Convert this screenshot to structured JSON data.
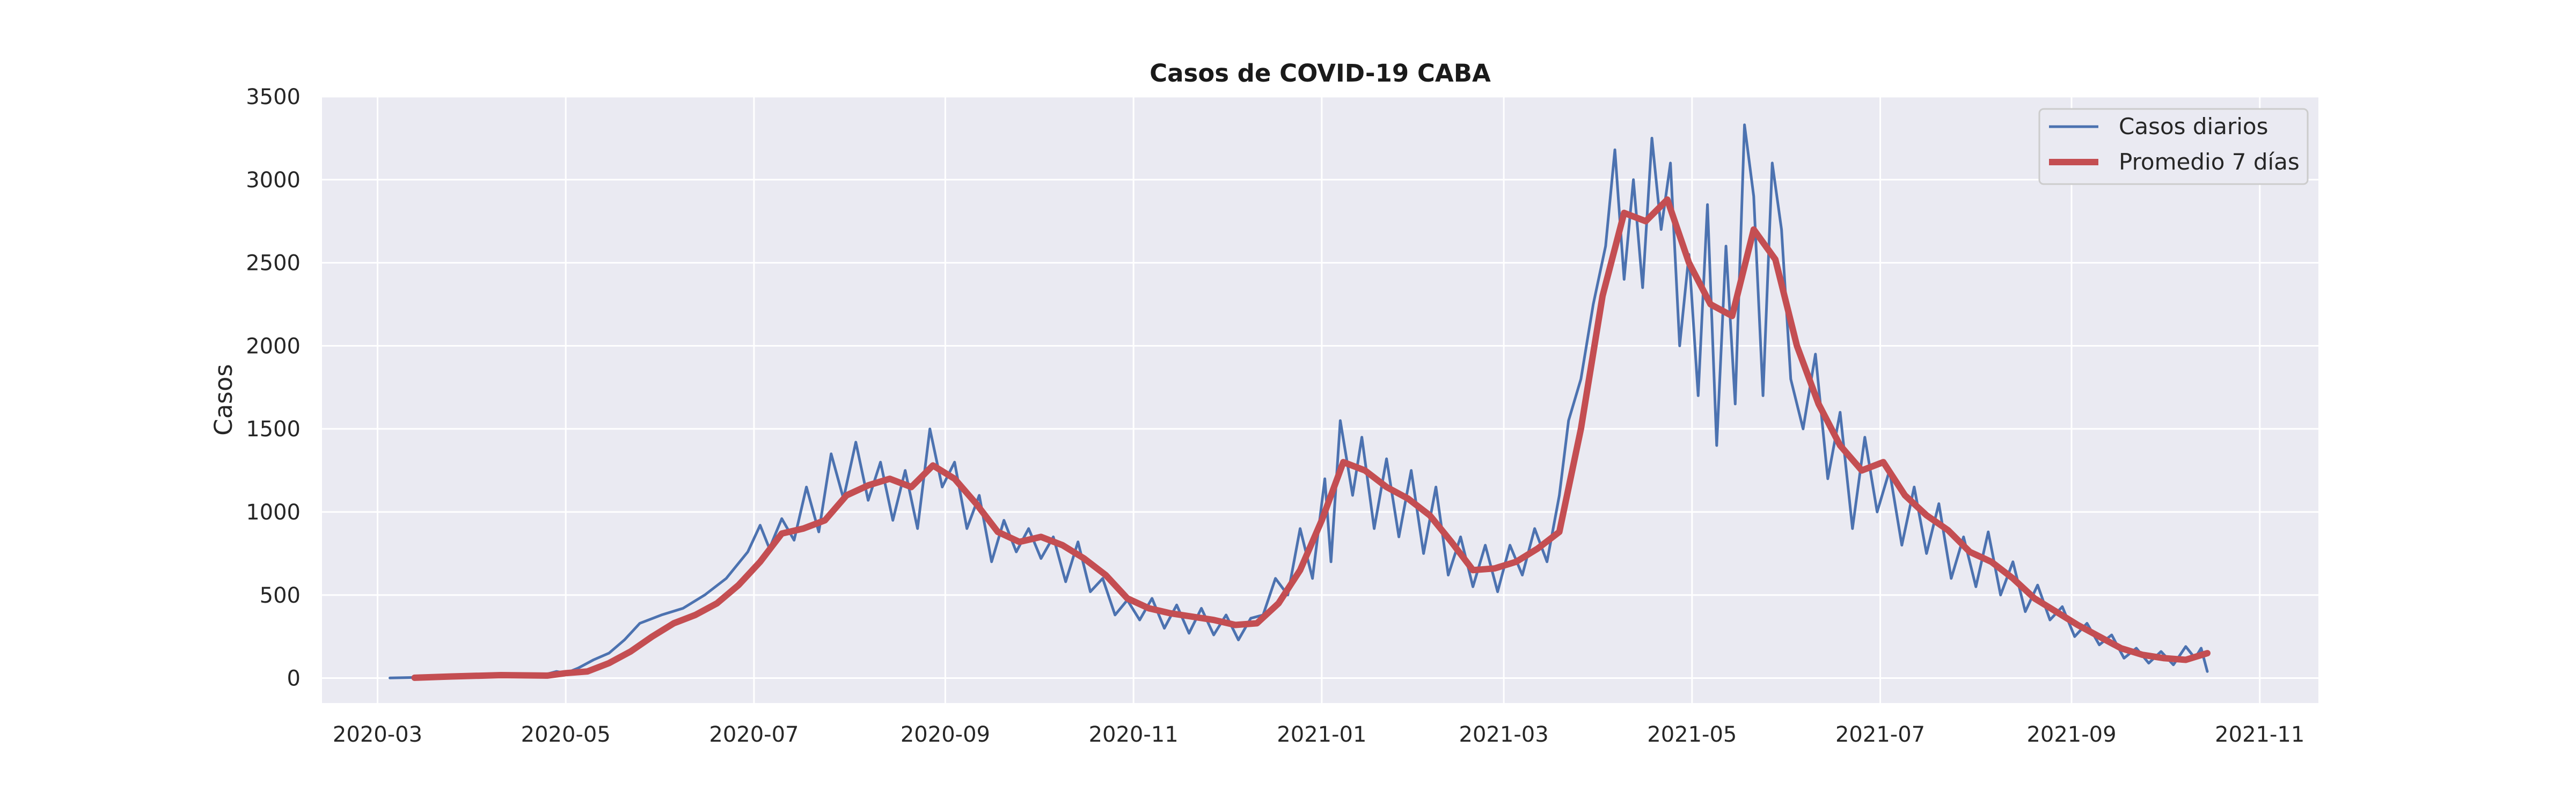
{
  "chart_data": {
    "type": "line",
    "title": "Casos de COVID-19 CABA",
    "xlabel": "",
    "ylabel": "Casos",
    "x_range": [
      "2020-02-12",
      "2021-11-20"
    ],
    "ylim": [
      -150,
      3500
    ],
    "y_ticks": [
      0,
      500,
      1000,
      1500,
      2000,
      2500,
      3000,
      3500
    ],
    "x_ticks": [
      "2020-03-01",
      "2020-05-01",
      "2020-07-01",
      "2020-09-01",
      "2020-11-01",
      "2021-01-01",
      "2021-03-01",
      "2021-05-01",
      "2021-07-01",
      "2021-09-01",
      "2021-11-01"
    ],
    "x_tick_labels": [
      "2020-03",
      "2020-05",
      "2020-07",
      "2020-09",
      "2020-11",
      "2021-01",
      "2021-03",
      "2021-05",
      "2021-07",
      "2021-09",
      "2021-11"
    ],
    "grid": true,
    "background": "#eaeaf2",
    "legend": {
      "position": "top-right"
    },
    "series": [
      {
        "name": "Casos diarios",
        "color": "#4c72b0",
        "points": [
          [
            "2020-03-05",
            1
          ],
          [
            "2020-03-15",
            5
          ],
          [
            "2020-03-25",
            12
          ],
          [
            "2020-04-05",
            20
          ],
          [
            "2020-04-15",
            15
          ],
          [
            "2020-04-22",
            10
          ],
          [
            "2020-04-28",
            40
          ],
          [
            "2020-05-01",
            30
          ],
          [
            "2020-05-05",
            60
          ],
          [
            "2020-05-10",
            110
          ],
          [
            "2020-05-15",
            150
          ],
          [
            "2020-05-20",
            230
          ],
          [
            "2020-05-25",
            330
          ],
          [
            "2020-06-01",
            380
          ],
          [
            "2020-06-08",
            420
          ],
          [
            "2020-06-15",
            500
          ],
          [
            "2020-06-22",
            600
          ],
          [
            "2020-06-29",
            760
          ],
          [
            "2020-07-03",
            920
          ],
          [
            "2020-07-06",
            780
          ],
          [
            "2020-07-10",
            960
          ],
          [
            "2020-07-14",
            830
          ],
          [
            "2020-07-18",
            1150
          ],
          [
            "2020-07-22",
            880
          ],
          [
            "2020-07-26",
            1350
          ],
          [
            "2020-07-30",
            1080
          ],
          [
            "2020-08-03",
            1420
          ],
          [
            "2020-08-07",
            1070
          ],
          [
            "2020-08-11",
            1300
          ],
          [
            "2020-08-15",
            950
          ],
          [
            "2020-08-19",
            1250
          ],
          [
            "2020-08-23",
            900
          ],
          [
            "2020-08-27",
            1500
          ],
          [
            "2020-08-31",
            1150
          ],
          [
            "2020-09-04",
            1300
          ],
          [
            "2020-09-08",
            900
          ],
          [
            "2020-09-12",
            1100
          ],
          [
            "2020-09-16",
            700
          ],
          [
            "2020-09-20",
            950
          ],
          [
            "2020-09-24",
            760
          ],
          [
            "2020-09-28",
            900
          ],
          [
            "2020-10-02",
            720
          ],
          [
            "2020-10-06",
            850
          ],
          [
            "2020-10-10",
            580
          ],
          [
            "2020-10-14",
            820
          ],
          [
            "2020-10-18",
            520
          ],
          [
            "2020-10-22",
            600
          ],
          [
            "2020-10-26",
            380
          ],
          [
            "2020-10-30",
            470
          ],
          [
            "2020-11-03",
            350
          ],
          [
            "2020-11-07",
            480
          ],
          [
            "2020-11-11",
            300
          ],
          [
            "2020-11-15",
            440
          ],
          [
            "2020-11-19",
            270
          ],
          [
            "2020-11-23",
            420
          ],
          [
            "2020-11-27",
            260
          ],
          [
            "2020-12-01",
            380
          ],
          [
            "2020-12-05",
            230
          ],
          [
            "2020-12-09",
            360
          ],
          [
            "2020-12-13",
            380
          ],
          [
            "2020-12-17",
            600
          ],
          [
            "2020-12-21",
            500
          ],
          [
            "2020-12-25",
            900
          ],
          [
            "2020-12-29",
            600
          ],
          [
            "2021-01-02",
            1200
          ],
          [
            "2021-01-04",
            700
          ],
          [
            "2021-01-07",
            1550
          ],
          [
            "2021-01-11",
            1100
          ],
          [
            "2021-01-14",
            1450
          ],
          [
            "2021-01-18",
            900
          ],
          [
            "2021-01-22",
            1320
          ],
          [
            "2021-01-26",
            850
          ],
          [
            "2021-01-30",
            1250
          ],
          [
            "2021-02-03",
            750
          ],
          [
            "2021-02-07",
            1150
          ],
          [
            "2021-02-11",
            620
          ],
          [
            "2021-02-15",
            850
          ],
          [
            "2021-02-19",
            550
          ],
          [
            "2021-02-23",
            800
          ],
          [
            "2021-02-27",
            520
          ],
          [
            "2021-03-03",
            800
          ],
          [
            "2021-03-07",
            620
          ],
          [
            "2021-03-11",
            900
          ],
          [
            "2021-03-15",
            700
          ],
          [
            "2021-03-19",
            1100
          ],
          [
            "2021-03-22",
            1550
          ],
          [
            "2021-03-26",
            1800
          ],
          [
            "2021-03-30",
            2250
          ],
          [
            "2021-04-03",
            2600
          ],
          [
            "2021-04-06",
            3180
          ],
          [
            "2021-04-09",
            2400
          ],
          [
            "2021-04-12",
            3000
          ],
          [
            "2021-04-15",
            2350
          ],
          [
            "2021-04-18",
            3250
          ],
          [
            "2021-04-21",
            2700
          ],
          [
            "2021-04-24",
            3100
          ],
          [
            "2021-04-27",
            2000
          ],
          [
            "2021-04-30",
            2550
          ],
          [
            "2021-05-03",
            1700
          ],
          [
            "2021-05-06",
            2850
          ],
          [
            "2021-05-09",
            1400
          ],
          [
            "2021-05-12",
            2600
          ],
          [
            "2021-05-15",
            1650
          ],
          [
            "2021-05-18",
            3330
          ],
          [
            "2021-05-21",
            2900
          ],
          [
            "2021-05-24",
            1700
          ],
          [
            "2021-05-27",
            3100
          ],
          [
            "2021-05-30",
            2700
          ],
          [
            "2021-06-02",
            1800
          ],
          [
            "2021-06-06",
            1500
          ],
          [
            "2021-06-10",
            1950
          ],
          [
            "2021-06-14",
            1200
          ],
          [
            "2021-06-18",
            1600
          ],
          [
            "2021-06-22",
            900
          ],
          [
            "2021-06-26",
            1450
          ],
          [
            "2021-06-30",
            1000
          ],
          [
            "2021-07-04",
            1250
          ],
          [
            "2021-07-08",
            800
          ],
          [
            "2021-07-12",
            1150
          ],
          [
            "2021-07-16",
            750
          ],
          [
            "2021-07-20",
            1050
          ],
          [
            "2021-07-24",
            600
          ],
          [
            "2021-07-28",
            850
          ],
          [
            "2021-08-01",
            550
          ],
          [
            "2021-08-05",
            880
          ],
          [
            "2021-08-09",
            500
          ],
          [
            "2021-08-13",
            700
          ],
          [
            "2021-08-17",
            400
          ],
          [
            "2021-08-21",
            560
          ],
          [
            "2021-08-25",
            350
          ],
          [
            "2021-08-29",
            430
          ],
          [
            "2021-09-02",
            250
          ],
          [
            "2021-09-06",
            330
          ],
          [
            "2021-09-10",
            200
          ],
          [
            "2021-09-14",
            260
          ],
          [
            "2021-09-18",
            120
          ],
          [
            "2021-09-22",
            180
          ],
          [
            "2021-09-26",
            90
          ],
          [
            "2021-09-30",
            160
          ],
          [
            "2021-10-04",
            80
          ],
          [
            "2021-10-08",
            190
          ],
          [
            "2021-10-11",
            120
          ],
          [
            "2021-10-13",
            180
          ],
          [
            "2021-10-15",
            40
          ]
        ]
      },
      {
        "name": "Promedio 7 días",
        "color": "#c44e52",
        "points": [
          [
            "2020-03-13",
            2
          ],
          [
            "2020-03-25",
            10
          ],
          [
            "2020-04-10",
            18
          ],
          [
            "2020-04-25",
            15
          ],
          [
            "2020-05-01",
            30
          ],
          [
            "2020-05-08",
            40
          ],
          [
            "2020-05-15",
            90
          ],
          [
            "2020-05-22",
            160
          ],
          [
            "2020-05-29",
            250
          ],
          [
            "2020-06-05",
            330
          ],
          [
            "2020-06-12",
            380
          ],
          [
            "2020-06-19",
            450
          ],
          [
            "2020-06-26",
            560
          ],
          [
            "2020-07-03",
            700
          ],
          [
            "2020-07-10",
            870
          ],
          [
            "2020-07-17",
            900
          ],
          [
            "2020-07-24",
            950
          ],
          [
            "2020-07-31",
            1100
          ],
          [
            "2020-08-07",
            1160
          ],
          [
            "2020-08-14",
            1200
          ],
          [
            "2020-08-21",
            1150
          ],
          [
            "2020-08-28",
            1280
          ],
          [
            "2020-09-04",
            1200
          ],
          [
            "2020-09-11",
            1050
          ],
          [
            "2020-09-18",
            880
          ],
          [
            "2020-09-25",
            820
          ],
          [
            "2020-10-02",
            850
          ],
          [
            "2020-10-09",
            800
          ],
          [
            "2020-10-16",
            720
          ],
          [
            "2020-10-23",
            620
          ],
          [
            "2020-10-30",
            480
          ],
          [
            "2020-11-06",
            420
          ],
          [
            "2020-11-13",
            390
          ],
          [
            "2020-11-20",
            370
          ],
          [
            "2020-11-27",
            350
          ],
          [
            "2020-12-04",
            320
          ],
          [
            "2020-12-11",
            330
          ],
          [
            "2020-12-18",
            450
          ],
          [
            "2020-12-25",
            650
          ],
          [
            "2021-01-01",
            950
          ],
          [
            "2021-01-08",
            1300
          ],
          [
            "2021-01-15",
            1250
          ],
          [
            "2021-01-22",
            1150
          ],
          [
            "2021-01-29",
            1080
          ],
          [
            "2021-02-05",
            980
          ],
          [
            "2021-02-12",
            820
          ],
          [
            "2021-02-19",
            650
          ],
          [
            "2021-02-26",
            660
          ],
          [
            "2021-03-05",
            700
          ],
          [
            "2021-03-12",
            780
          ],
          [
            "2021-03-19",
            880
          ],
          [
            "2021-03-26",
            1500
          ],
          [
            "2021-04-02",
            2300
          ],
          [
            "2021-04-09",
            2800
          ],
          [
            "2021-04-16",
            2750
          ],
          [
            "2021-04-23",
            2880
          ],
          [
            "2021-04-30",
            2500
          ],
          [
            "2021-05-07",
            2250
          ],
          [
            "2021-05-14",
            2180
          ],
          [
            "2021-05-21",
            2700
          ],
          [
            "2021-05-28",
            2520
          ],
          [
            "2021-06-04",
            2000
          ],
          [
            "2021-06-11",
            1650
          ],
          [
            "2021-06-18",
            1400
          ],
          [
            "2021-06-25",
            1250
          ],
          [
            "2021-07-02",
            1300
          ],
          [
            "2021-07-09",
            1100
          ],
          [
            "2021-07-16",
            980
          ],
          [
            "2021-07-23",
            890
          ],
          [
            "2021-07-30",
            760
          ],
          [
            "2021-08-06",
            700
          ],
          [
            "2021-08-13",
            600
          ],
          [
            "2021-08-20",
            480
          ],
          [
            "2021-08-27",
            400
          ],
          [
            "2021-09-03",
            320
          ],
          [
            "2021-09-10",
            250
          ],
          [
            "2021-09-17",
            180
          ],
          [
            "2021-09-24",
            140
          ],
          [
            "2021-10-01",
            120
          ],
          [
            "2021-10-08",
            110
          ],
          [
            "2021-10-15",
            150
          ]
        ]
      }
    ]
  }
}
